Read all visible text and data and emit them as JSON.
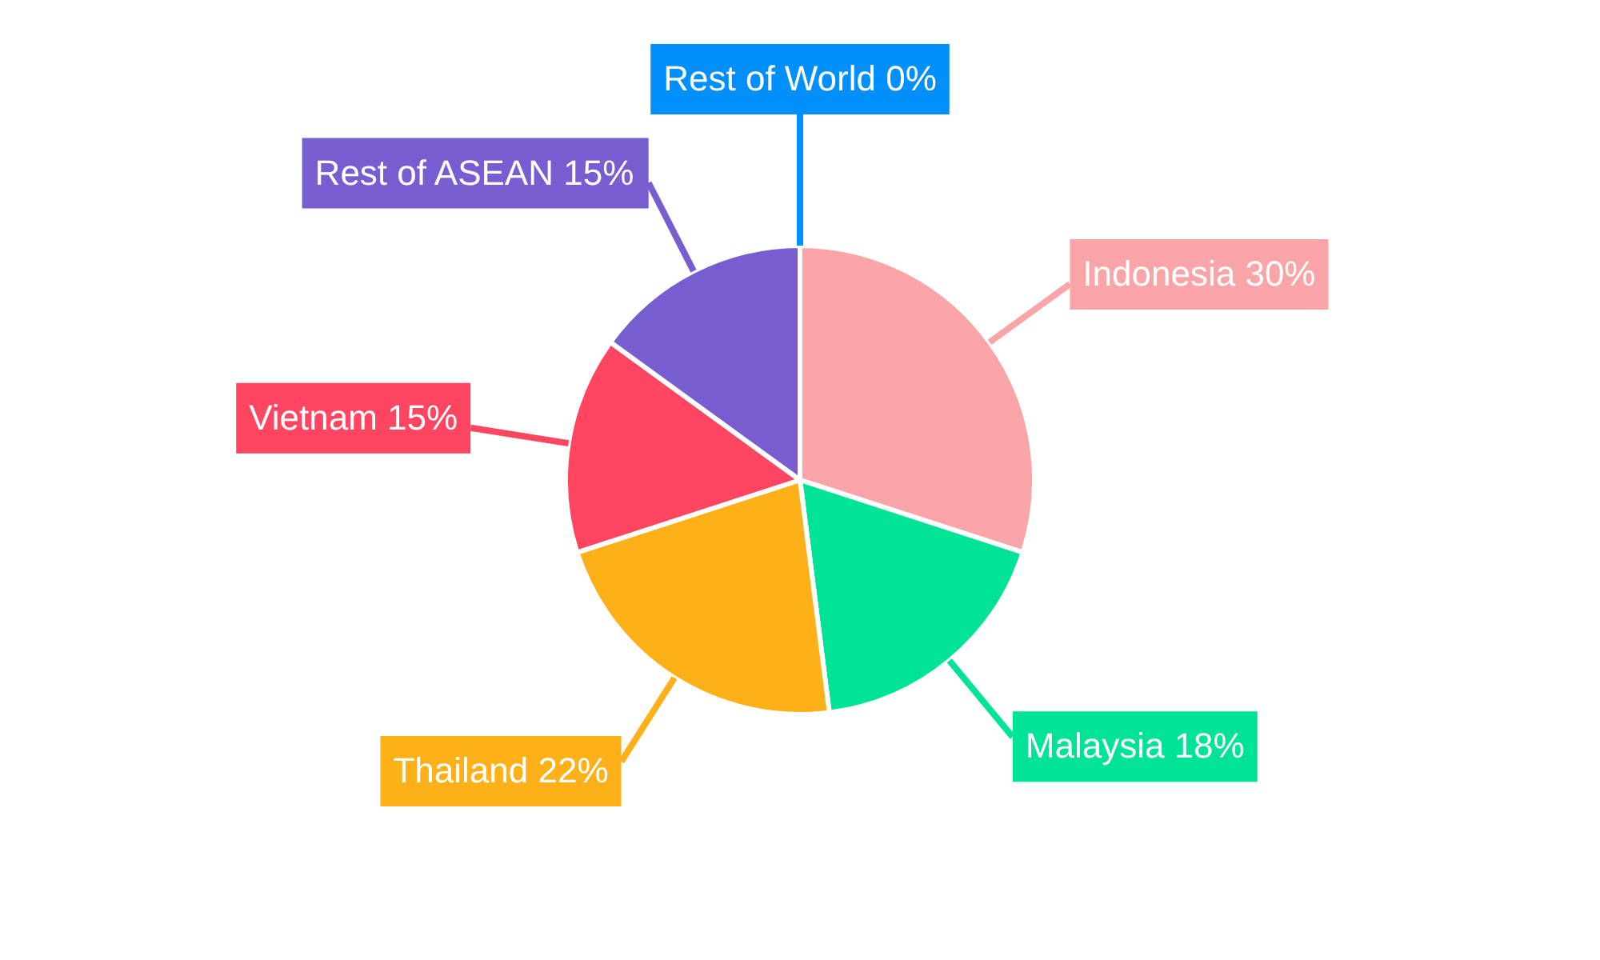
{
  "chart_data": {
    "type": "pie",
    "categories": [
      "Indonesia",
      "Malaysia",
      "Thailand",
      "Vietnam",
      "Rest of ASEAN",
      "Rest of World"
    ],
    "values": [
      30,
      18,
      22,
      15,
      15,
      0
    ],
    "value_labels": [
      "30%",
      "18%",
      "22%",
      "15%",
      "15%",
      "0%"
    ],
    "colors": [
      "#f9a5a7",
      "#00e396",
      "#feb019",
      "#ff4560",
      "#775dd0",
      "#008ffb"
    ],
    "legend": false
  }
}
